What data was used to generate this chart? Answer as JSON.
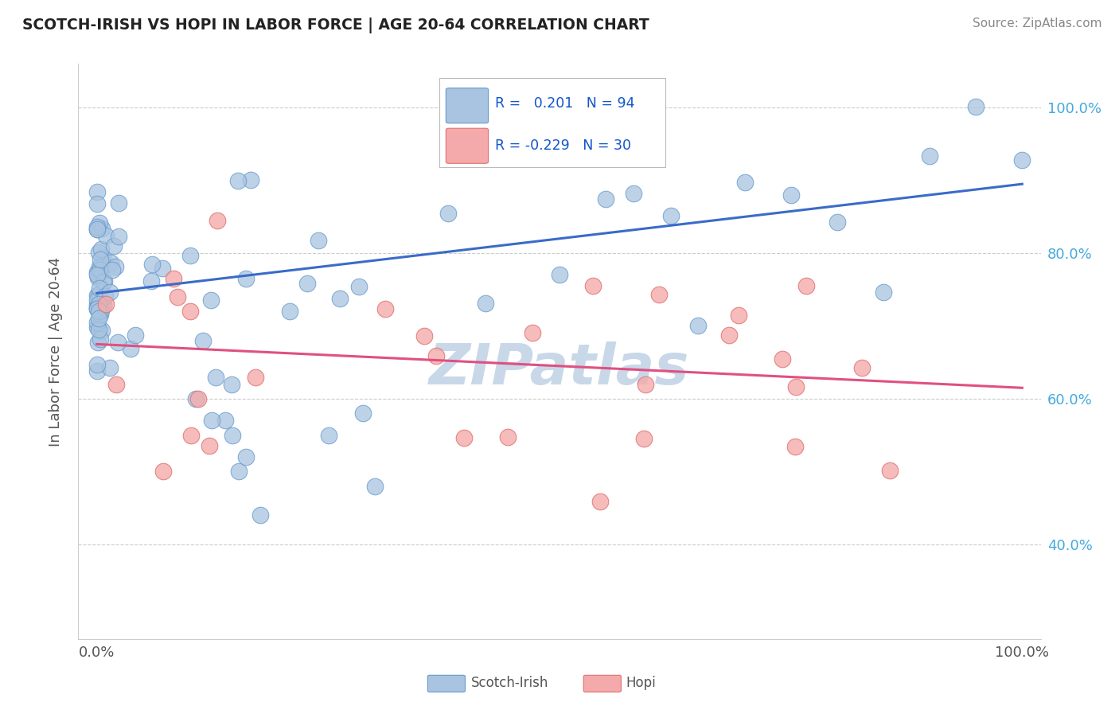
{
  "title": "SCOTCH-IRISH VS HOPI IN LABOR FORCE | AGE 20-64 CORRELATION CHART",
  "source": "Source: ZipAtlas.com",
  "ylabel": "In Labor Force | Age 20-64",
  "xlim": [
    -0.02,
    1.02
  ],
  "ylim": [
    0.27,
    1.06
  ],
  "xtick_vals": [
    0.0,
    1.0
  ],
  "xtick_labels": [
    "0.0%",
    "100.0%"
  ],
  "ytick_vals": [
    0.4,
    0.6,
    0.8,
    1.0
  ],
  "ytick_labels": [
    "40.0%",
    "60.0%",
    "80.0%",
    "100.0%"
  ],
  "scotch_irish_r": 0.201,
  "scotch_irish_n": 94,
  "hopi_r": -0.229,
  "hopi_n": 30,
  "scotch_irish_color": "#A8C4E0",
  "scotch_irish_edge": "#6699CC",
  "hopi_color": "#F4AAAA",
  "hopi_edge": "#E07070",
  "si_line_color": "#3A6BC8",
  "hopi_line_color": "#E05080",
  "ytick_color": "#44AADD",
  "watermark_color": "#C8D8E8",
  "legend_text_color": "#1155CC",
  "si_line_start_y": 0.745,
  "si_line_end_y": 0.895,
  "hopi_line_start_y": 0.675,
  "hopi_line_end_y": 0.615
}
